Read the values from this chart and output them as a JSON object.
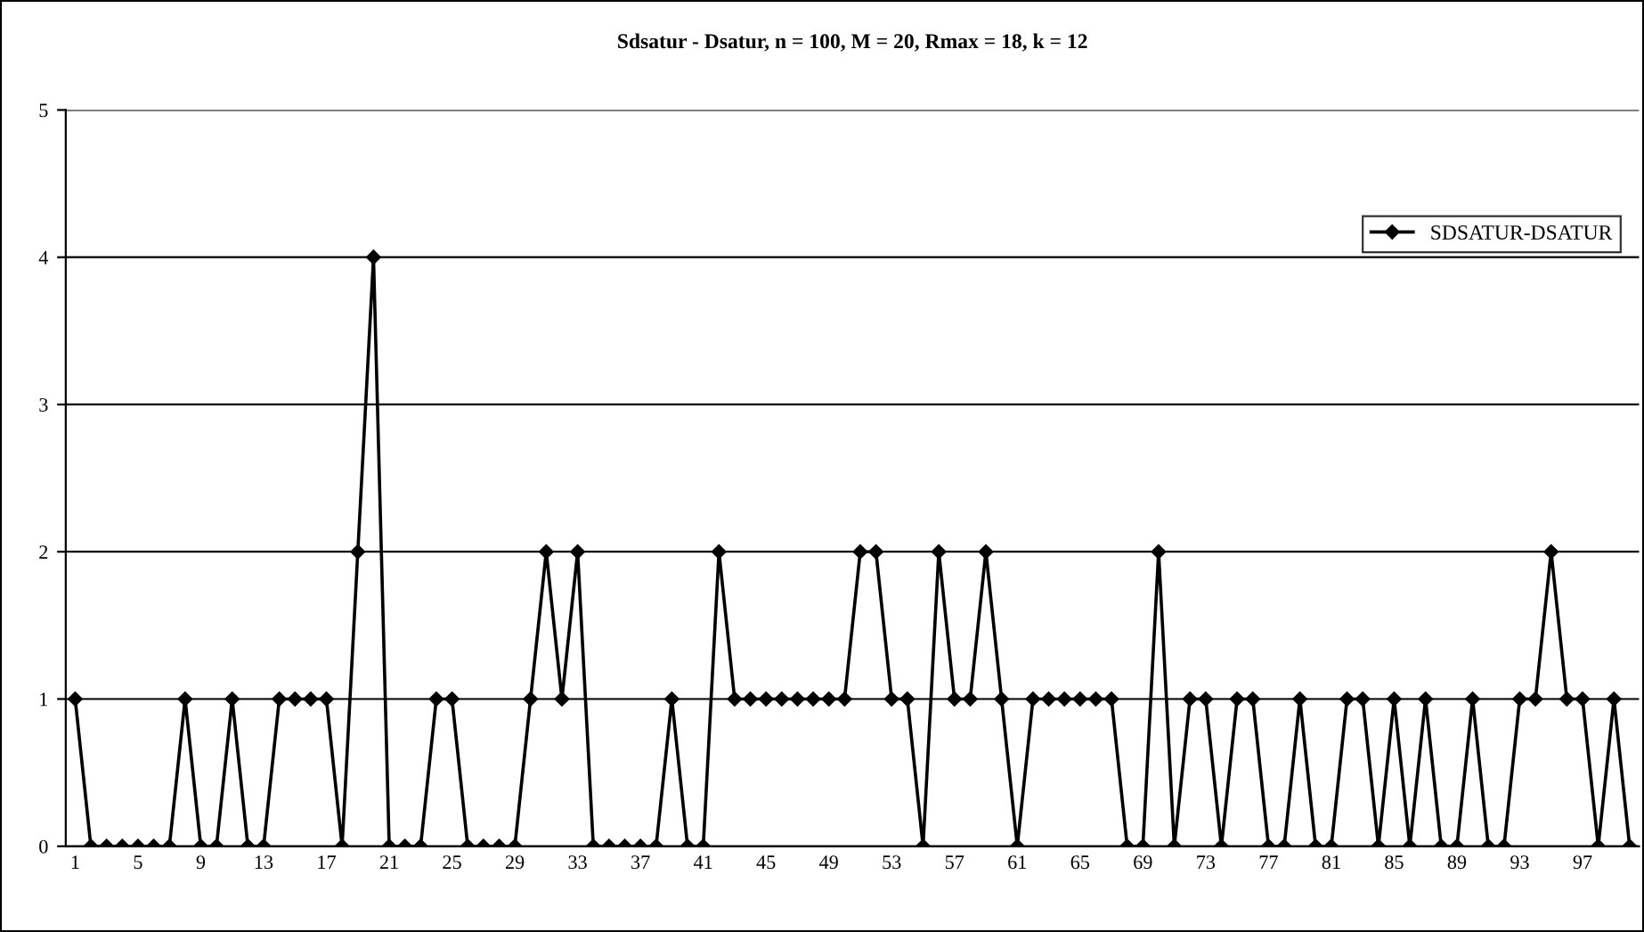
{
  "chart_data": {
    "type": "line",
    "title": "Sdsatur - Dsatur, n = 100, M = 20, Rmax = 18, k = 12",
    "categories": [
      "1",
      null,
      null,
      null,
      "5",
      null,
      null,
      null,
      "9",
      null,
      null,
      null,
      "13",
      null,
      null,
      null,
      "17",
      null,
      null,
      null,
      "21",
      null,
      null,
      null,
      "25",
      null,
      null,
      null,
      "29",
      null,
      null,
      null,
      "33",
      null,
      null,
      null,
      "37",
      null,
      null,
      null,
      "41",
      null,
      null,
      null,
      "45",
      null,
      null,
      null,
      "49",
      null,
      null,
      null,
      "53",
      null,
      null,
      null,
      "57",
      null,
      null,
      null,
      "61",
      null,
      null,
      null,
      "65",
      null,
      null,
      null,
      "69",
      null,
      null,
      null,
      "73",
      null,
      null,
      null,
      "77",
      null,
      null,
      null,
      "81",
      null,
      null,
      null,
      "85",
      null,
      null,
      null,
      "89",
      null,
      null,
      null,
      "93",
      null,
      null,
      null,
      "97",
      null,
      null,
      null
    ],
    "series": [
      {
        "name": "SDSATUR-DSATUR",
        "color": "#000000",
        "values": [
          1,
          0,
          0,
          0,
          0,
          0,
          0,
          1,
          0,
          0,
          1,
          0,
          0,
          1,
          1,
          1,
          1,
          0,
          2,
          4,
          0,
          0,
          0,
          1,
          1,
          0,
          0,
          0,
          0,
          1,
          2,
          1,
          2,
          0,
          0,
          0,
          0,
          0,
          1,
          0,
          0,
          2,
          1,
          1,
          1,
          1,
          1,
          1,
          1,
          1,
          2,
          2,
          1,
          1,
          0,
          2,
          1,
          1,
          2,
          1,
          0,
          1,
          1,
          1,
          1,
          1,
          1,
          0,
          0,
          2,
          0,
          1,
          1,
          0,
          1,
          1,
          0,
          0,
          1,
          0,
          0,
          1,
          1,
          0,
          1,
          0,
          1,
          0,
          0,
          1,
          0,
          0,
          1,
          1,
          2,
          1,
          1,
          0,
          1,
          0
        ]
      }
    ],
    "ylim": [
      0,
      5
    ],
    "yticks": [
      0,
      1,
      2,
      3,
      4,
      5
    ],
    "grid": "y",
    "legend": "top right",
    "marker": "diamond",
    "line_style": "solid"
  }
}
